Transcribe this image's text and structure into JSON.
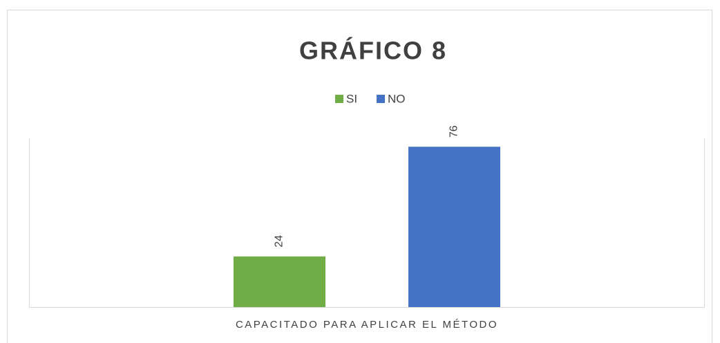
{
  "chart_data": {
    "type": "bar",
    "title": "GRÁFICO 8",
    "categories": [
      "CAPACITADO PARA APLICAR EL MÉTODO"
    ],
    "series": [
      {
        "name": "SI",
        "color": "#70ad47",
        "values": [
          24
        ]
      },
      {
        "name": "NO",
        "color": "#4472c4",
        "values": [
          76
        ]
      }
    ],
    "ylim": [
      0,
      80
    ]
  }
}
